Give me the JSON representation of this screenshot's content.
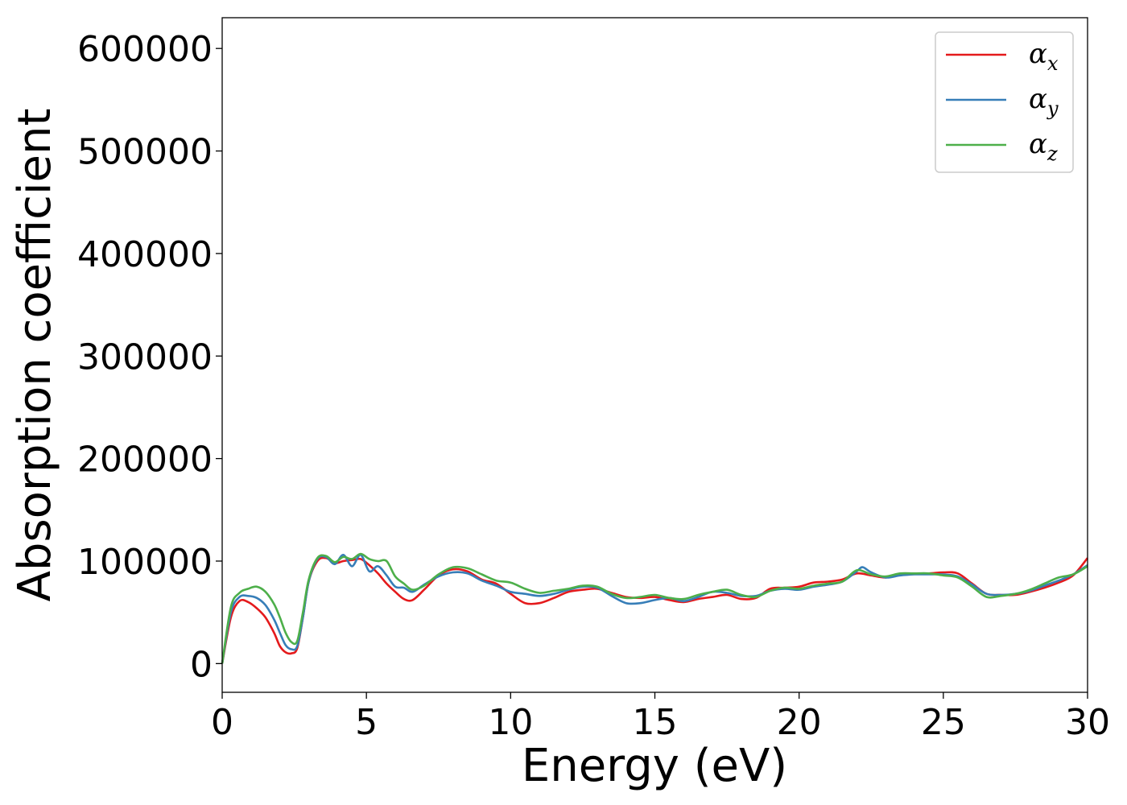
{
  "chart_data": {
    "type": "line",
    "xlabel": "Energy (eV)",
    "ylabel": "Absorption coefficient",
    "xlim": [
      0,
      30
    ],
    "ylim": [
      -28000,
      630000
    ],
    "xticks": [
      0,
      5,
      10,
      15,
      20,
      25,
      30
    ],
    "xtick_labels": [
      "0",
      "5",
      "10",
      "15",
      "20",
      "25",
      "30"
    ],
    "yticks": [
      0,
      100000,
      200000,
      300000,
      400000,
      500000,
      600000
    ],
    "ytick_labels": [
      "0",
      "100000",
      "200000",
      "300000",
      "400000",
      "500000",
      "600000"
    ],
    "grid": false,
    "legend_position": "top-right",
    "series": [
      {
        "name": "α",
        "name_sub": "x",
        "color": "#e41a1c",
        "x": [
          0,
          0.3,
          0.6,
          0.9,
          1.2,
          1.5,
          1.8,
          2.0,
          2.2,
          2.4,
          2.6,
          2.8,
          3.0,
          3.3,
          3.6,
          3.9,
          4.2,
          4.5,
          4.8,
          5.1,
          5.4,
          5.7,
          6.0,
          6.3,
          6.6,
          7.0,
          7.5,
          8.0,
          8.5,
          9.0,
          9.5,
          10.0,
          10.5,
          11.0,
          11.5,
          12.0,
          12.5,
          13.0,
          13.5,
          14.0,
          14.5,
          15.0,
          15.5,
          16.0,
          16.5,
          17.0,
          17.5,
          18.0,
          18.5,
          19.0,
          19.5,
          20.0,
          20.5,
          21.0,
          21.5,
          22.0,
          22.5,
          23.0,
          23.5,
          24.0,
          24.5,
          25.0,
          25.5,
          26.0,
          26.5,
          27.0,
          27.5,
          28.0,
          28.5,
          29.0,
          29.5,
          30.0
        ],
        "values": [
          0,
          45000,
          61000,
          60000,
          54000,
          45000,
          30000,
          17000,
          11000,
          10000,
          15000,
          45000,
          80000,
          100000,
          103000,
          98000,
          100000,
          101000,
          102000,
          96000,
          88000,
          78000,
          70000,
          63000,
          62000,
          72000,
          86000,
          92000,
          90000,
          82000,
          78000,
          68000,
          59000,
          59000,
          64000,
          70000,
          72000,
          73000,
          69000,
          65000,
          64000,
          65000,
          62000,
          60000,
          63000,
          65000,
          67000,
          63000,
          64000,
          73000,
          74000,
          75000,
          79000,
          80000,
          82000,
          88000,
          86000,
          84000,
          87000,
          88000,
          88000,
          89000,
          88000,
          78000,
          68000,
          67000,
          67000,
          70000,
          74000,
          79000,
          86000,
          103000
        ]
      },
      {
        "name": "α",
        "name_sub": "y",
        "color": "#377eb8",
        "x": [
          0,
          0.3,
          0.6,
          0.9,
          1.2,
          1.5,
          1.8,
          2.0,
          2.2,
          2.4,
          2.6,
          2.8,
          3.0,
          3.3,
          3.6,
          3.9,
          4.2,
          4.5,
          4.8,
          5.1,
          5.4,
          5.7,
          6.0,
          6.3,
          6.6,
          7.0,
          7.5,
          8.0,
          8.5,
          9.0,
          9.5,
          10.0,
          10.5,
          11.0,
          11.5,
          12.0,
          12.5,
          13.0,
          13.5,
          14.0,
          14.5,
          15.0,
          15.5,
          16.0,
          16.5,
          17.0,
          17.5,
          18.0,
          18.5,
          19.0,
          19.5,
          20.0,
          20.5,
          21.0,
          21.5,
          22.0,
          22.2,
          22.5,
          23.0,
          23.5,
          24.0,
          24.5,
          25.0,
          25.5,
          26.0,
          26.5,
          27.0,
          27.5,
          28.0,
          28.5,
          29.0,
          29.5,
          30.0
        ],
        "values": [
          0,
          50000,
          65000,
          66000,
          64000,
          57000,
          43000,
          30000,
          18000,
          14000,
          17000,
          45000,
          80000,
          102000,
          104000,
          97000,
          106000,
          95000,
          106000,
          90000,
          95000,
          86000,
          75000,
          74000,
          70000,
          77000,
          85000,
          89000,
          88000,
          81000,
          76000,
          70000,
          68000,
          66000,
          68000,
          72000,
          75000,
          74000,
          66000,
          59000,
          59000,
          62000,
          64000,
          61000,
          65000,
          70000,
          69000,
          66000,
          66000,
          71000,
          73000,
          72000,
          75000,
          77000,
          80000,
          90000,
          94000,
          89000,
          84000,
          86000,
          87000,
          87000,
          87000,
          85000,
          77000,
          68000,
          67000,
          68000,
          71000,
          76000,
          81000,
          87000,
          96000
        ]
      },
      {
        "name": "α",
        "name_sub": "z",
        "color": "#4daf4a",
        "x": [
          0,
          0.3,
          0.6,
          0.9,
          1.2,
          1.5,
          1.8,
          2.0,
          2.2,
          2.4,
          2.6,
          2.8,
          3.0,
          3.3,
          3.6,
          3.9,
          4.2,
          4.5,
          4.8,
          5.1,
          5.4,
          5.7,
          6.0,
          6.3,
          6.6,
          7.0,
          7.5,
          8.0,
          8.5,
          9.0,
          9.5,
          10.0,
          10.5,
          11.0,
          11.5,
          12.0,
          12.5,
          13.0,
          13.5,
          14.0,
          14.5,
          15.0,
          15.5,
          16.0,
          16.5,
          17.0,
          17.5,
          18.0,
          18.5,
          19.0,
          19.5,
          20.0,
          20.5,
          21.0,
          21.5,
          22.0,
          22.5,
          23.0,
          23.5,
          24.0,
          24.5,
          25.0,
          25.5,
          26.0,
          26.5,
          27.0,
          27.5,
          28.0,
          28.5,
          29.0,
          29.5,
          30.0
        ],
        "values": [
          0,
          55000,
          69000,
          73000,
          75000,
          70000,
          58000,
          45000,
          30000,
          21000,
          22000,
          50000,
          82000,
          103000,
          105000,
          99000,
          104000,
          102000,
          107000,
          102000,
          100000,
          100000,
          85000,
          78000,
          72000,
          76000,
          87000,
          94000,
          93000,
          87000,
          81000,
          79000,
          73000,
          69000,
          71000,
          73000,
          76000,
          75000,
          68000,
          64000,
          65000,
          67000,
          64000,
          63000,
          67000,
          70000,
          72000,
          67000,
          65000,
          71000,
          74000,
          73000,
          76000,
          78000,
          80000,
          91000,
          87000,
          85000,
          88000,
          88000,
          88000,
          86000,
          84000,
          75000,
          65000,
          66000,
          68000,
          72000,
          78000,
          84000,
          87000,
          95000
        ]
      }
    ]
  }
}
